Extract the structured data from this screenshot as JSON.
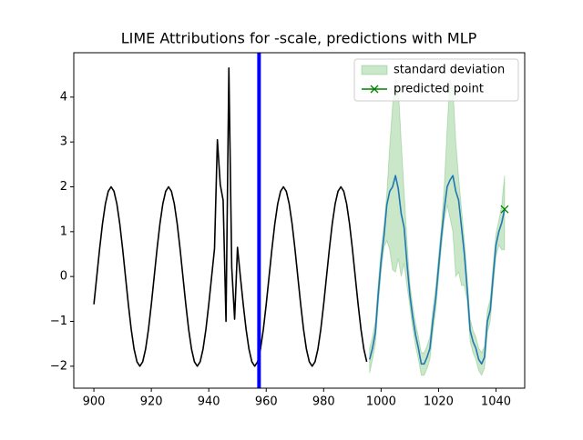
{
  "chart_data": {
    "type": "line",
    "title": "LIME Attributions for -scale, predictions with MLP",
    "xlim": [
      893,
      1050
    ],
    "xticks": [
      900,
      920,
      940,
      960,
      980,
      1000,
      1020,
      1040
    ],
    "ylim": [
      -2.49,
      4.99
    ],
    "yticks": [
      {
        "value": -2,
        "label": "−2"
      },
      {
        "value": -1,
        "label": "−1"
      },
      0,
      1,
      2,
      3,
      4
    ],
    "legend": "upper right",
    "series": [
      {
        "color": "#000000",
        "x": [
          900,
          901,
          902,
          903,
          904,
          905,
          906,
          907,
          908,
          909,
          910,
          911,
          912,
          913,
          914,
          915,
          916,
          917,
          918,
          919,
          920,
          921,
          922,
          923,
          924,
          925,
          926,
          927,
          928,
          929,
          930,
          931,
          932,
          933,
          934,
          935,
          936,
          937,
          938,
          939,
          940,
          941,
          942,
          943,
          944,
          945,
          946,
          947,
          948,
          949,
          950,
          951,
          952,
          953,
          954,
          955,
          956,
          957,
          958,
          959,
          960,
          961,
          962,
          963,
          964,
          965,
          966,
          967,
          968,
          969,
          970,
          971,
          972,
          973,
          974,
          975,
          976,
          977,
          978,
          979,
          980,
          981,
          982,
          983,
          984,
          985,
          986,
          987,
          988,
          989,
          990,
          991,
          992,
          993,
          994,
          995
        ],
        "values": [
          -0.62,
          0,
          0.62,
          1.18,
          1.62,
          1.9,
          2,
          1.9,
          1.62,
          1.18,
          0.62,
          0,
          -0.62,
          -1.18,
          -1.62,
          -1.9,
          -2,
          -1.9,
          -1.62,
          -1.18,
          -0.62,
          0,
          0.62,
          1.18,
          1.62,
          1.9,
          2,
          1.9,
          1.62,
          1.18,
          0.62,
          0,
          -0.62,
          -1.18,
          -1.62,
          -1.9,
          -2,
          -1.9,
          -1.62,
          -1.18,
          -0.62,
          0,
          0.62,
          3.05,
          2.05,
          1.7,
          -1.0,
          4.65,
          0.2,
          -0.95,
          0.65,
          0,
          -0.62,
          -1.18,
          -1.62,
          -1.9,
          -2,
          -1.9,
          -1.62,
          -1.18,
          -0.62,
          0,
          0.62,
          1.18,
          1.62,
          1.9,
          2,
          1.9,
          1.62,
          1.18,
          0.62,
          0,
          -0.62,
          -1.18,
          -1.62,
          -1.9,
          -2,
          -1.9,
          -1.62,
          -1.18,
          -0.62,
          0,
          0.62,
          1.18,
          1.62,
          1.9,
          2,
          1.9,
          1.62,
          1.18,
          0.62,
          0,
          -0.62,
          -1.18,
          -1.62,
          -1.9
        ]
      },
      {
        "color": "#1f77b4",
        "x": [
          996,
          997,
          998,
          999,
          1000,
          1001,
          1002,
          1003,
          1004,
          1005,
          1006,
          1007,
          1008,
          1009,
          1010,
          1011,
          1012,
          1013,
          1014,
          1015,
          1016,
          1017,
          1018,
          1019,
          1020,
          1021,
          1022,
          1023,
          1024,
          1025,
          1026,
          1027,
          1028,
          1029,
          1030,
          1031,
          1032,
          1033,
          1034,
          1035,
          1036,
          1037,
          1038,
          1039,
          1040,
          1041,
          1042,
          1043
        ],
        "values": [
          -1.85,
          -1.6,
          -1.25,
          -0.4,
          0.35,
          0.9,
          1.6,
          1.9,
          2.0,
          2.25,
          1.95,
          1.4,
          1.1,
          0.3,
          -0.4,
          -0.9,
          -1.3,
          -1.6,
          -1.95,
          -1.95,
          -1.8,
          -1.6,
          -1.0,
          -0.5,
          0.2,
          0.9,
          1.5,
          2.0,
          2.15,
          2.25,
          1.9,
          1.7,
          1.1,
          0.5,
          -0.3,
          -1.2,
          -1.45,
          -1.6,
          -1.85,
          -1.95,
          -1.8,
          -1.0,
          -0.75,
          0.0,
          0.7,
          1.0,
          1.2,
          1.5
        ]
      }
    ],
    "band": {
      "name": "standard deviation",
      "color": "#2ca02c",
      "x": [
        996,
        997,
        998,
        999,
        1000,
        1001,
        1002,
        1003,
        1004,
        1005,
        1006,
        1007,
        1008,
        1009,
        1010,
        1011,
        1012,
        1013,
        1014,
        1015,
        1016,
        1017,
        1018,
        1019,
        1020,
        1021,
        1022,
        1023,
        1024,
        1025,
        1026,
        1027,
        1028,
        1029,
        1030,
        1031,
        1032,
        1033,
        1034,
        1035,
        1036,
        1037,
        1038,
        1039,
        1040,
        1041,
        1042,
        1043
      ],
      "lower": [
        -2.15,
        -1.85,
        -1.5,
        -0.65,
        0.1,
        0.65,
        0.8,
        0.6,
        0.15,
        0.1,
        0.4,
        0.0,
        0.3,
        -0.2,
        -0.65,
        -1.15,
        -1.55,
        -1.85,
        -2.2,
        -2.2,
        -2.05,
        -1.85,
        -1.25,
        -0.75,
        -0.05,
        0.65,
        1.25,
        1.6,
        1.3,
        1.0,
        0.0,
        0.1,
        -0.2,
        -0.2,
        -0.55,
        -1.45,
        -1.7,
        -1.85,
        -2.1,
        -2.2,
        -2.05,
        -1.25,
        -1.0,
        -0.25,
        0.45,
        0.7,
        0.6,
        0.6
      ],
      "upper": [
        -1.6,
        -1.35,
        -1.0,
        -0.15,
        0.6,
        1.15,
        1.85,
        2.9,
        3.8,
        4.4,
        4.2,
        3.0,
        1.9,
        0.8,
        -0.15,
        -0.65,
        -1.05,
        -1.35,
        -1.7,
        -1.7,
        -1.55,
        -1.35,
        -0.75,
        -0.25,
        0.45,
        1.15,
        2.0,
        3.3,
        4.4,
        4.2,
        3.0,
        2.2,
        1.5,
        0.8,
        -0.05,
        -0.95,
        -1.2,
        -1.35,
        -1.6,
        -1.7,
        -1.55,
        -0.75,
        -0.5,
        0.25,
        0.95,
        1.25,
        1.6,
        2.25
      ]
    },
    "points": {
      "name": "predicted point",
      "color": "#008000",
      "x": [
        1043
      ],
      "values": [
        1.5
      ]
    },
    "vline": {
      "x": 957.5,
      "color": "#0000ff"
    }
  }
}
